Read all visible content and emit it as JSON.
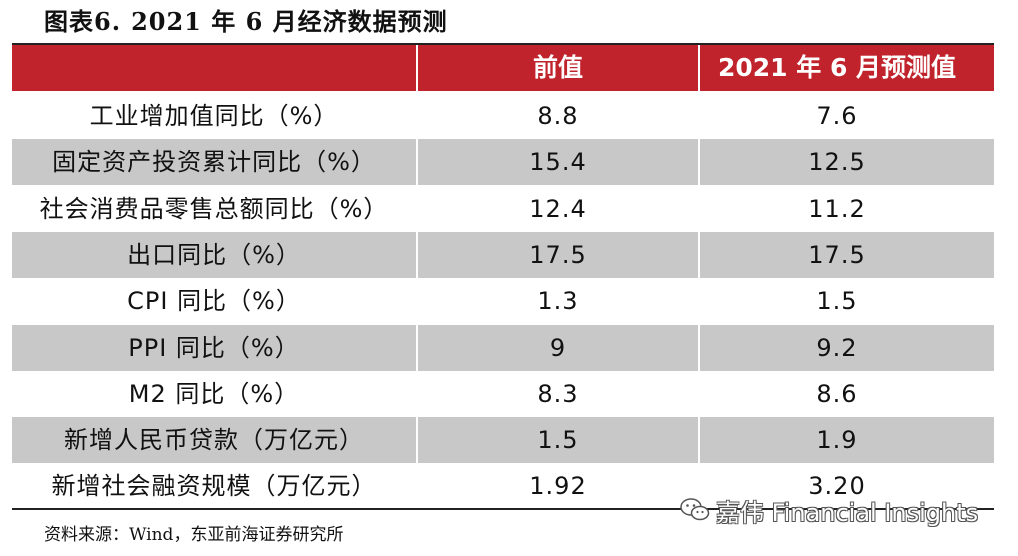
{
  "title": {
    "label": "图表6.",
    "text": "2021 年 6 月经济数据预测"
  },
  "table": {
    "columns": [
      "",
      "前值",
      "2021 年 6 月预测值"
    ],
    "rows": [
      {
        "indicator": "工业增加值同比（%）",
        "previous": "8.8",
        "forecast": "7.6"
      },
      {
        "indicator": "固定资产投资累计同比（%）",
        "previous": "15.4",
        "forecast": "12.5"
      },
      {
        "indicator": "社会消费品零售总额同比（%）",
        "previous": "12.4",
        "forecast": "11.2"
      },
      {
        "indicator": "出口同比（%）",
        "previous": "17.5",
        "forecast": "17.5"
      },
      {
        "indicator": "CPI 同比（%）",
        "previous": "1.3",
        "forecast": "1.5"
      },
      {
        "indicator": "PPI 同比（%）",
        "previous": "9",
        "forecast": "9.2"
      },
      {
        "indicator": "M2 同比（%）",
        "previous": "8.3",
        "forecast": "8.6"
      },
      {
        "indicator": "新增人民币贷款（万亿元）",
        "previous": "1.5",
        "forecast": "1.9"
      },
      {
        "indicator": "新增社会融资规模（万亿元）",
        "previous": "1.92",
        "forecast": "3.20"
      }
    ]
  },
  "source": "资料来源：Wind，东亚前海证券研究所",
  "watermark": {
    "icon": "wechat-icon",
    "text": "嘉伟 Financial Insights"
  },
  "colors": {
    "header": "#c0232b",
    "shaded_row": "#c8c8c8"
  }
}
